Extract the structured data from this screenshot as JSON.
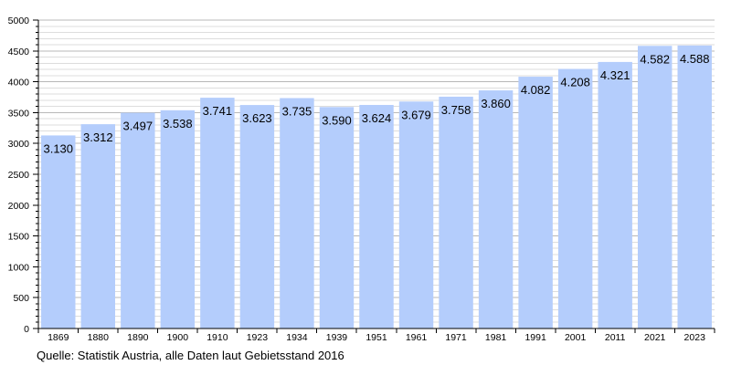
{
  "chart_data": {
    "type": "bar",
    "categories": [
      "1869",
      "1880",
      "1890",
      "1900",
      "1910",
      "1923",
      "1934",
      "1939",
      "1951",
      "1961",
      "1971",
      "1981",
      "1991",
      "2001",
      "2011",
      "2021",
      "2023"
    ],
    "values": [
      3130,
      3312,
      3497,
      3538,
      3741,
      3623,
      3735,
      3590,
      3624,
      3679,
      3758,
      3860,
      4082,
      4208,
      4321,
      4582,
      4588
    ],
    "data_labels": [
      "3.130",
      "3.312",
      "3.497",
      "3.538",
      "3.741",
      "3.623",
      "3.735",
      "3.590",
      "3.624",
      "3.679",
      "3.758",
      "3.860",
      "4.082",
      "4.208",
      "4.321",
      "4.582",
      "4.588"
    ],
    "title": "",
    "xlabel": "",
    "ylabel": "",
    "ylim": [
      0,
      5000
    ],
    "yticks": [
      0,
      500,
      1000,
      1500,
      2000,
      2500,
      3000,
      3500,
      4000,
      4500,
      5000
    ],
    "grid": true,
    "bar_color": "#b4cdfc",
    "source": "Quelle: Statistik Austria, alle Daten laut Gebietsstand 2016"
  }
}
